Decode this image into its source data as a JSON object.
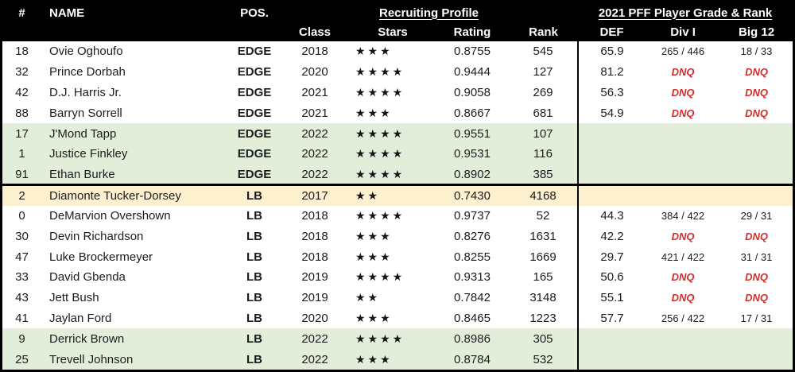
{
  "table": {
    "header": {
      "col_number": "#",
      "col_name": "NAME",
      "col_pos": "POS.",
      "group_recruiting": "Recruiting Profile",
      "group_pff": "2021 PFF Player Grade & Rank",
      "sub": {
        "class": "Class",
        "stars": "Stars",
        "rating": "Rating",
        "rank": "Rank",
        "def": "DEF",
        "div1": "Div I",
        "big12": "Big 12"
      }
    },
    "colors": {
      "header_bg": "#000000",
      "row_green": "#e3eeda",
      "row_yellow": "#fdf0ce",
      "dnq_red": "#d02e2e",
      "star_icon": "#141414"
    },
    "rows": [
      {
        "num": "18",
        "name": "Ovie Oghoufo",
        "pos": "EDGE",
        "class": "2018",
        "stars": 3,
        "rating": "0.8755",
        "rank": "545",
        "def": "65.9",
        "div1": "265 / 446",
        "big12": "18 / 33",
        "bg": "white"
      },
      {
        "num": "32",
        "name": "Prince Dorbah",
        "pos": "EDGE",
        "class": "2020",
        "stars": 4,
        "rating": "0.9444",
        "rank": "127",
        "def": "81.2",
        "div1": "DNQ",
        "big12": "DNQ",
        "bg": "white"
      },
      {
        "num": "42",
        "name": "D.J. Harris Jr.",
        "pos": "EDGE",
        "class": "2021",
        "stars": 4,
        "rating": "0.9058",
        "rank": "269",
        "def": "56.3",
        "div1": "DNQ",
        "big12": "DNQ",
        "bg": "white"
      },
      {
        "num": "88",
        "name": "Barryn Sorrell",
        "pos": "EDGE",
        "class": "2021",
        "stars": 3,
        "rating": "0.8667",
        "rank": "681",
        "def": "54.9",
        "div1": "DNQ",
        "big12": "DNQ",
        "bg": "white"
      },
      {
        "num": "17",
        "name": "J'Mond Tapp",
        "pos": "EDGE",
        "class": "2022",
        "stars": 4,
        "rating": "0.9551",
        "rank": "107",
        "def": "",
        "div1": "",
        "big12": "",
        "bg": "green"
      },
      {
        "num": "1",
        "name": "Justice Finkley",
        "pos": "EDGE",
        "class": "2022",
        "stars": 4,
        "rating": "0.9531",
        "rank": "116",
        "def": "",
        "div1": "",
        "big12": "",
        "bg": "green"
      },
      {
        "num": "91",
        "name": "Ethan Burke",
        "pos": "EDGE",
        "class": "2022",
        "stars": 4,
        "rating": "0.8902",
        "rank": "385",
        "def": "",
        "div1": "",
        "big12": "",
        "bg": "green",
        "divider_after": true
      },
      {
        "num": "2",
        "name": "Diamonte Tucker-Dorsey",
        "pos": "LB",
        "class": "2017",
        "stars": 2,
        "rating": "0.7430",
        "rank": "4168",
        "def": "",
        "div1": "",
        "big12": "",
        "bg": "yellow"
      },
      {
        "num": "0",
        "name": "DeMarvion Overshown",
        "pos": "LB",
        "class": "2018",
        "stars": 4,
        "rating": "0.9737",
        "rank": "52",
        "def": "44.3",
        "div1": "384 / 422",
        "big12": "29 / 31",
        "bg": "white"
      },
      {
        "num": "30",
        "name": "Devin Richardson",
        "pos": "LB",
        "class": "2018",
        "stars": 3,
        "rating": "0.8276",
        "rank": "1631",
        "def": "42.2",
        "div1": "DNQ",
        "big12": "DNQ",
        "bg": "white"
      },
      {
        "num": "47",
        "name": "Luke Brockermeyer",
        "pos": "LB",
        "class": "2018",
        "stars": 3,
        "rating": "0.8255",
        "rank": "1669",
        "def": "29.7",
        "div1": "421 / 422",
        "big12": "31 / 31",
        "bg": "white"
      },
      {
        "num": "33",
        "name": "David Gbenda",
        "pos": "LB",
        "class": "2019",
        "stars": 4,
        "rating": "0.9313",
        "rank": "165",
        "def": "50.6",
        "div1": "DNQ",
        "big12": "DNQ",
        "bg": "white"
      },
      {
        "num": "43",
        "name": "Jett Bush",
        "pos": "LB",
        "class": "2019",
        "stars": 2,
        "rating": "0.7842",
        "rank": "3148",
        "def": "55.1",
        "div1": "DNQ",
        "big12": "DNQ",
        "bg": "white"
      },
      {
        "num": "41",
        "name": "Jaylan Ford",
        "pos": "LB",
        "class": "2020",
        "stars": 3,
        "rating": "0.8465",
        "rank": "1223",
        "def": "57.7",
        "div1": "256 / 422",
        "big12": "17 / 31",
        "bg": "white"
      },
      {
        "num": "9",
        "name": "Derrick Brown",
        "pos": "LB",
        "class": "2022",
        "stars": 4,
        "rating": "0.8986",
        "rank": "305",
        "def": "",
        "div1": "",
        "big12": "",
        "bg": "green"
      },
      {
        "num": "25",
        "name": "Trevell Johnson",
        "pos": "LB",
        "class": "2022",
        "stars": 3,
        "rating": "0.8784",
        "rank": "532",
        "def": "",
        "div1": "",
        "big12": "",
        "bg": "green"
      }
    ],
    "star_icon_glyph": "★"
  }
}
